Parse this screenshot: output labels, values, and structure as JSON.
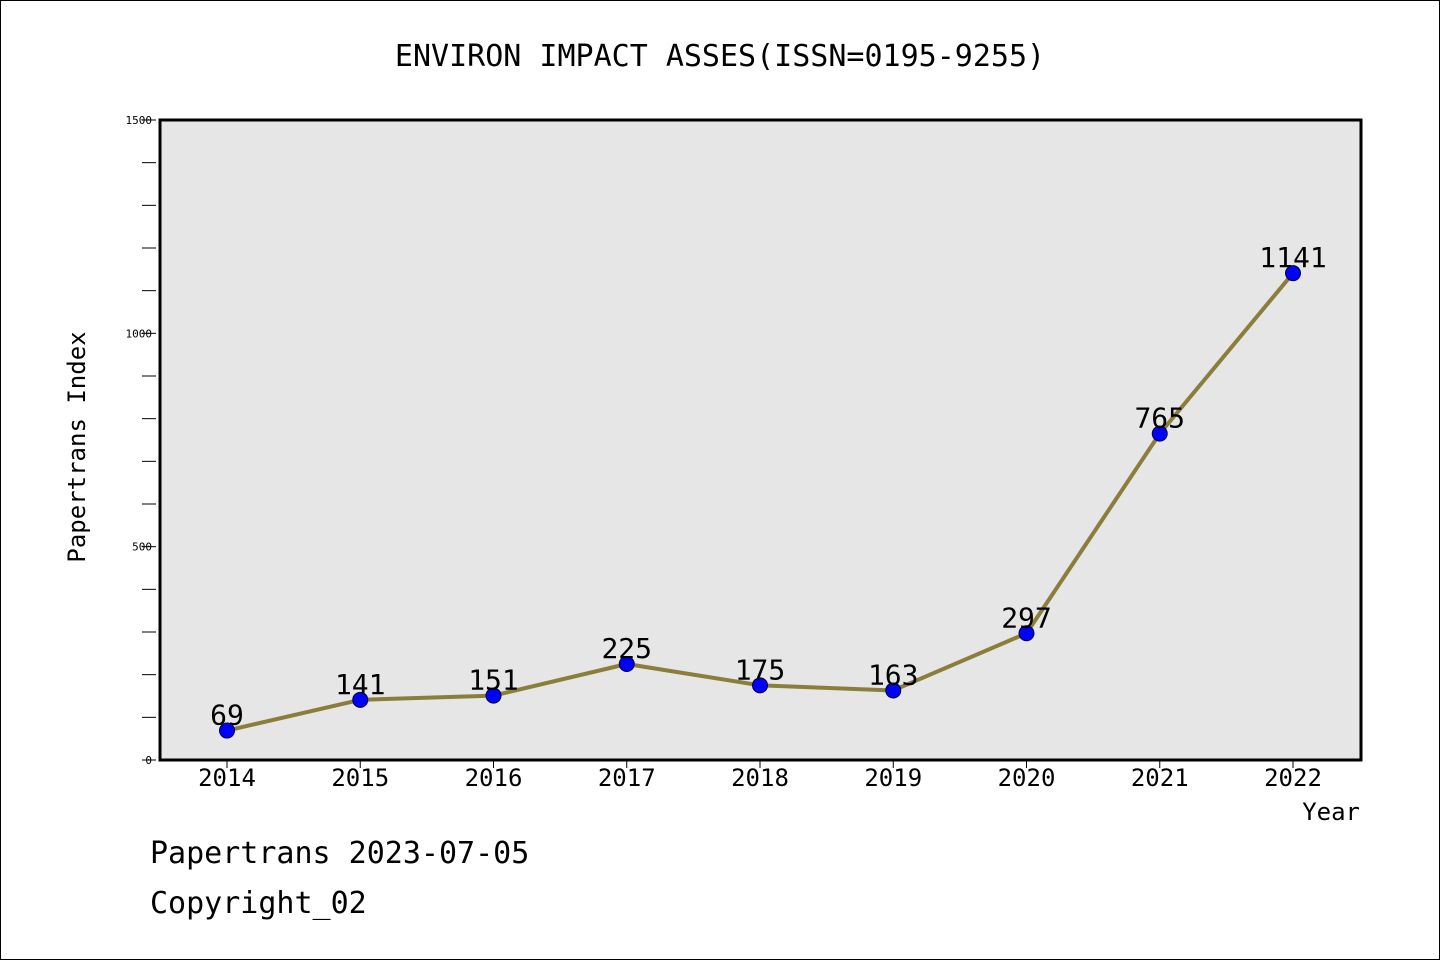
{
  "chart_data": {
    "type": "line",
    "title": "ENVIRON IMPACT ASSES(ISSN=0195-9255)",
    "xlabel": "Year",
    "ylabel": "Papertrans Index",
    "categories": [
      "2014",
      "2015",
      "2016",
      "2017",
      "2018",
      "2019",
      "2020",
      "2021",
      "2022"
    ],
    "values": [
      69,
      141,
      151,
      225,
      175,
      163,
      297,
      765,
      1141
    ],
    "ylim": [
      0,
      1500
    ],
    "yticks": [
      0,
      500,
      1000,
      1500
    ],
    "grid": false,
    "line_color": "#8b7d3a",
    "marker_color": "#0000ff",
    "plot_background": "#e6e6e6"
  },
  "footer": {
    "line1": "Papertrans 2023-07-05",
    "line2": "Copyright_02"
  }
}
